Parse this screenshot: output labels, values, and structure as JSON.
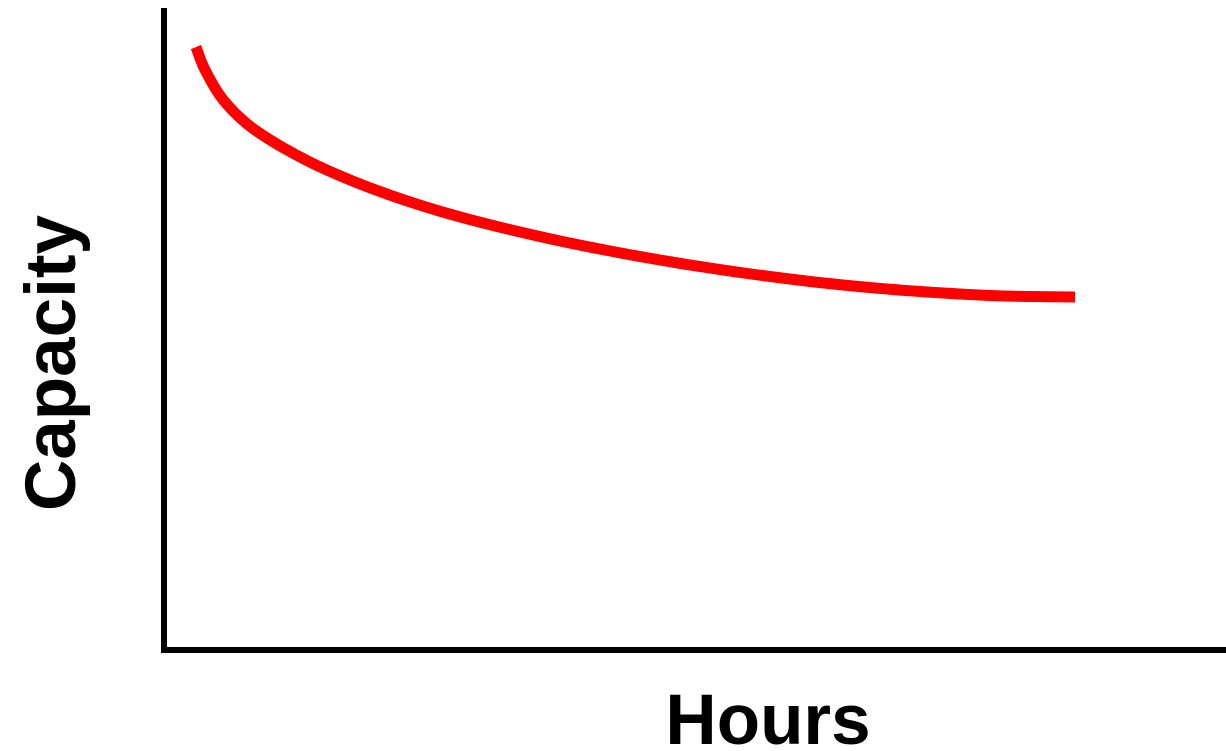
{
  "chart_data": {
    "type": "line",
    "title": "",
    "xlabel": "Hours",
    "ylabel": "Capacity",
    "xlim": [
      0,
      100
    ],
    "ylim": [
      0,
      100
    ],
    "grid": false,
    "legend": "none",
    "series": [
      {
        "color": "#ff0000",
        "x": [
          0,
          1,
          3,
          6,
          10,
          15,
          22,
          30,
          40,
          50,
          60,
          70,
          80,
          88,
          92,
          95,
          100
        ],
        "y": [
          100,
          95.5,
          89.6,
          84.3,
          79.7,
          75.2,
          70.3,
          65.9,
          61.6,
          58.1,
          55.2,
          52.9,
          51.2,
          50.3,
          50.0,
          49.9,
          49.8
        ]
      }
    ]
  },
  "colors": {
    "axis": "#000000",
    "series": "#ff0000",
    "background": "#ffffff"
  }
}
